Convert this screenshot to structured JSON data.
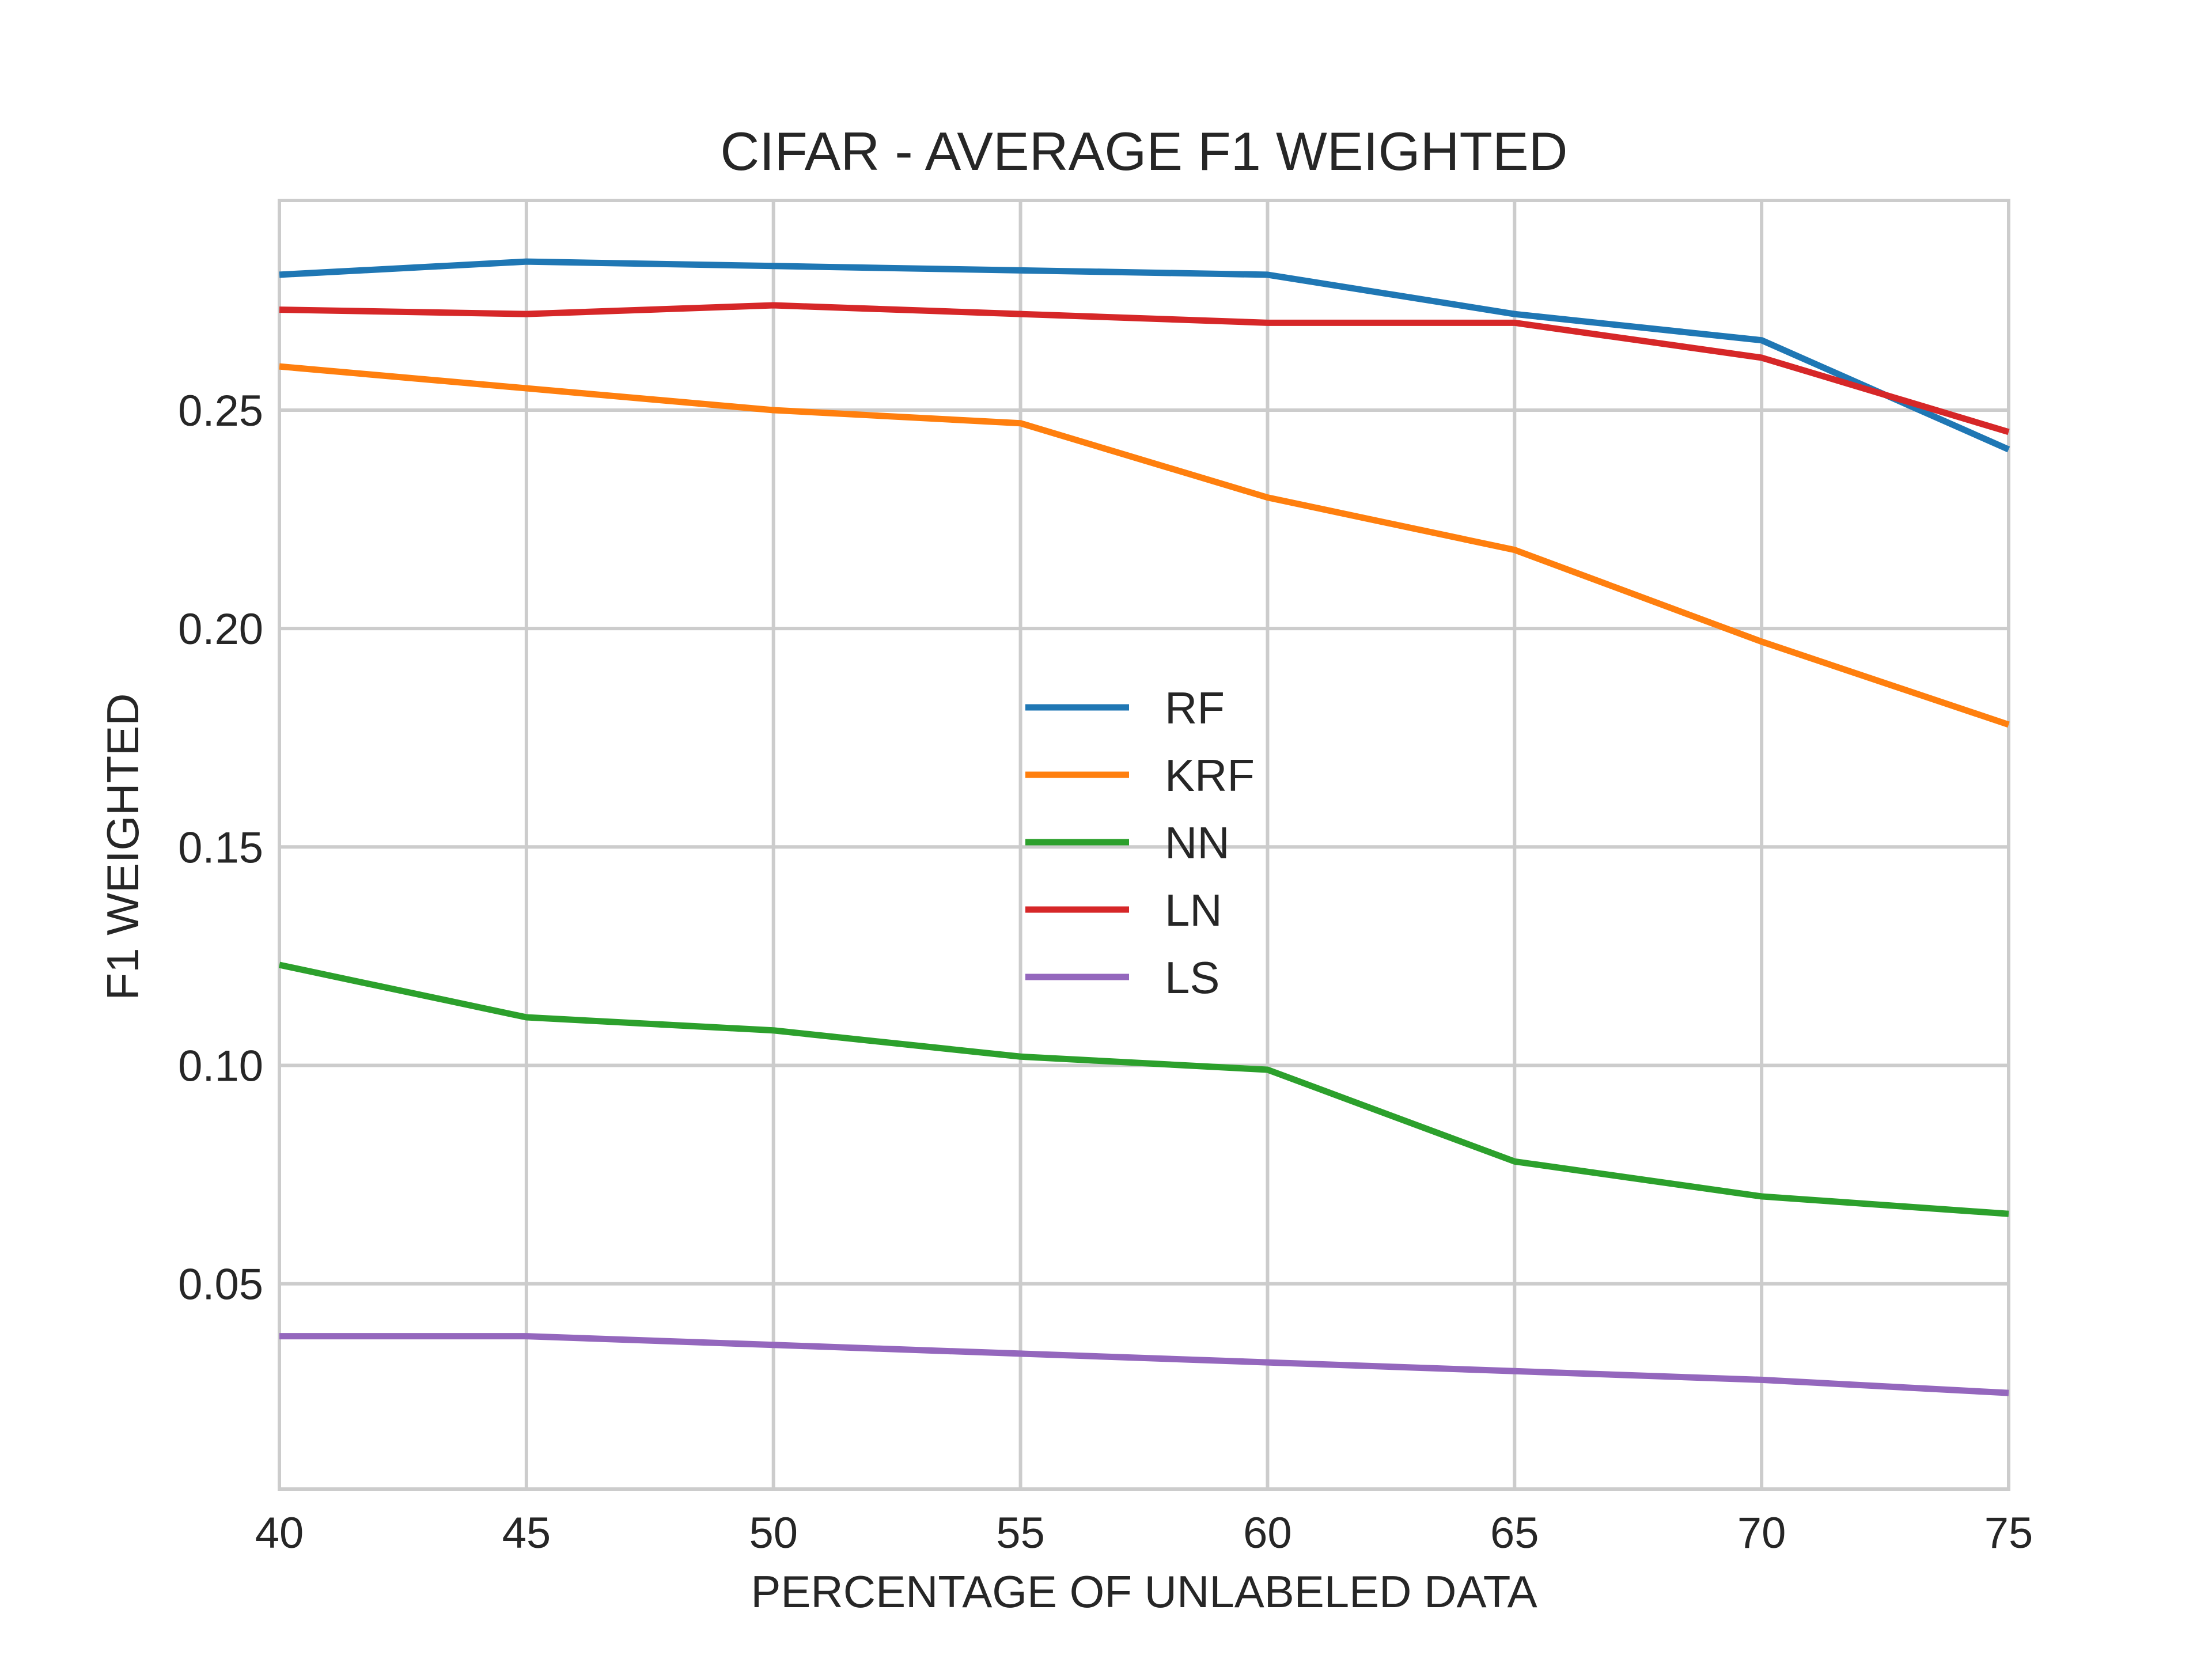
{
  "chart_data": {
    "type": "line",
    "title": "CIFAR - AVERAGE F1 WEIGHTED",
    "xlabel": "PERCENTAGE OF UNLABELED DATA",
    "ylabel": "F1 WEIGHTED",
    "x": [
      40,
      45,
      50,
      55,
      60,
      65,
      70,
      75
    ],
    "xlim": [
      40,
      75
    ],
    "ylim": [
      0.003,
      0.298
    ],
    "xticks": [
      "40",
      "45",
      "50",
      "55",
      "60",
      "65",
      "70",
      "75"
    ],
    "yticks": [
      "0.05",
      "0.10",
      "0.15",
      "0.20",
      "0.25"
    ],
    "grid": true,
    "legend_position": "center",
    "series": [
      {
        "name": "RF",
        "color": "#1f77b4",
        "values": [
          0.281,
          0.284,
          0.283,
          0.282,
          0.281,
          0.272,
          0.266,
          0.241
        ]
      },
      {
        "name": "KRF",
        "color": "#ff7f0e",
        "values": [
          0.26,
          0.255,
          0.25,
          0.247,
          0.23,
          0.218,
          0.197,
          0.178
        ]
      },
      {
        "name": "NN",
        "color": "#2ca02c",
        "values": [
          0.123,
          0.111,
          0.108,
          0.102,
          0.099,
          0.078,
          0.07,
          0.066
        ]
      },
      {
        "name": "LN",
        "color": "#d62728",
        "values": [
          0.273,
          0.272,
          0.274,
          0.272,
          0.27,
          0.27,
          0.262,
          0.245
        ]
      },
      {
        "name": "LS",
        "color": "#9467bd",
        "values": [
          0.038,
          0.038,
          0.036,
          0.034,
          0.032,
          0.03,
          0.028,
          0.025
        ]
      }
    ]
  }
}
